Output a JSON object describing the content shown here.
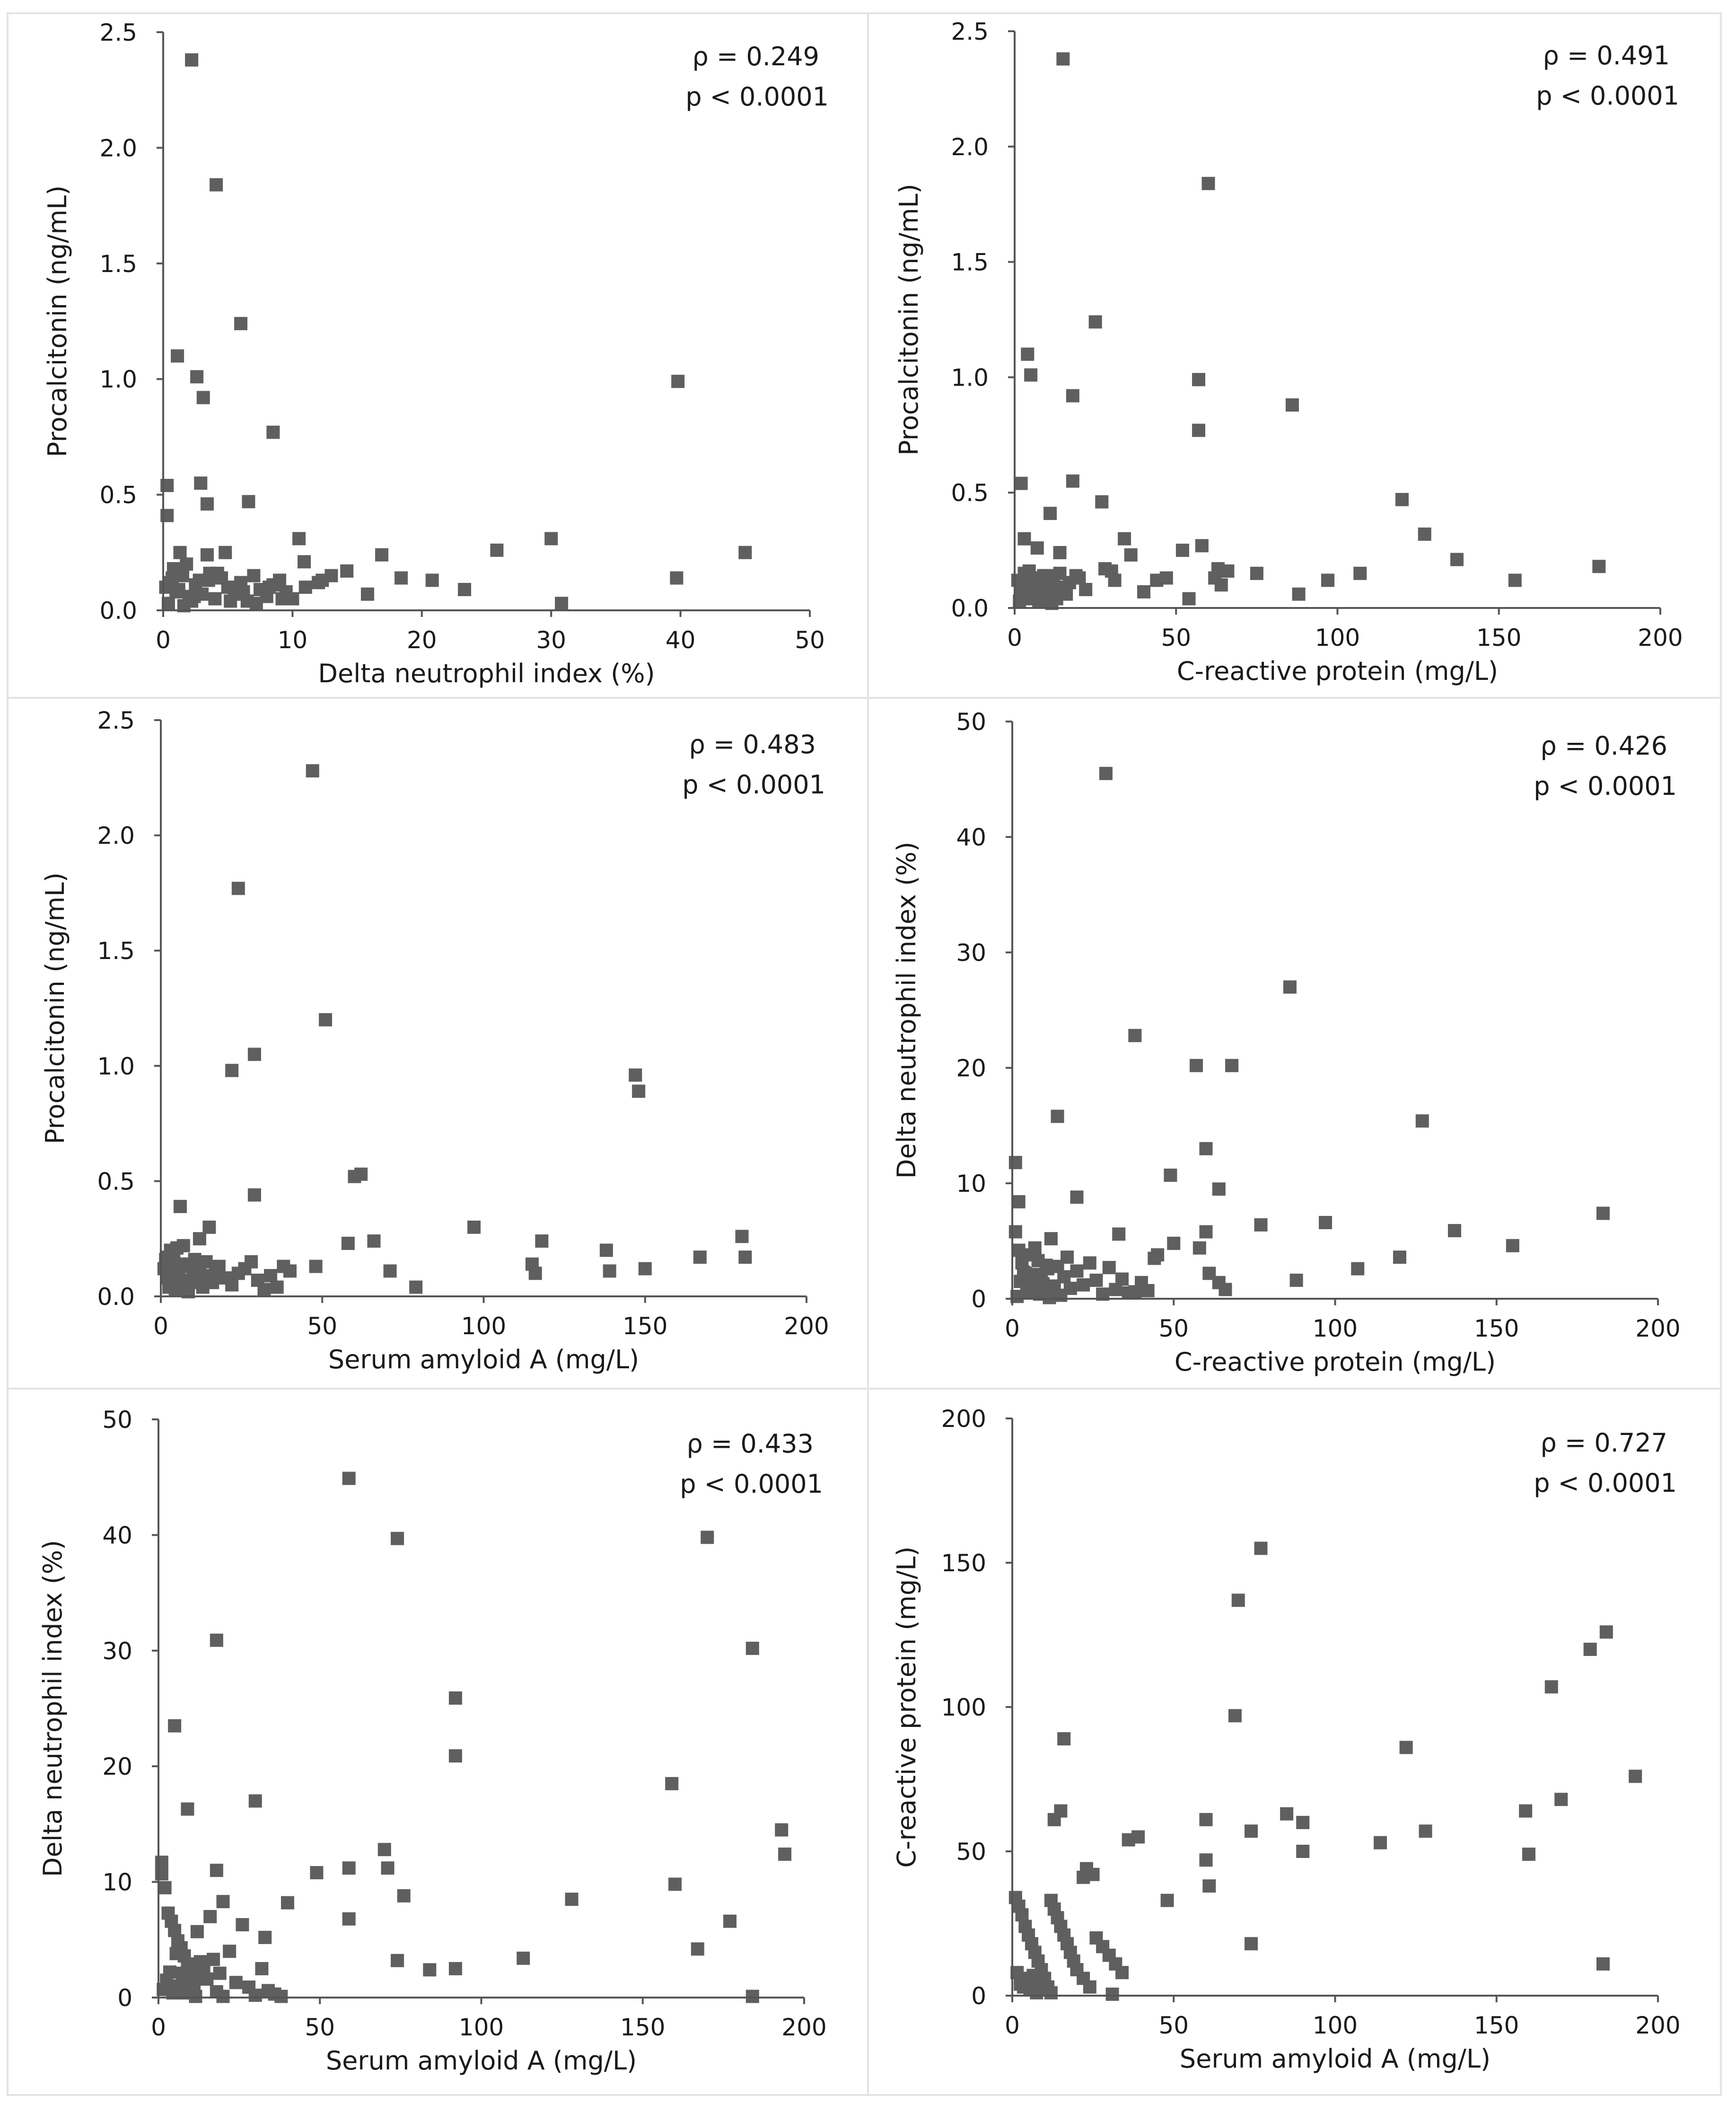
{
  "chart_data": [
    {
      "type": "scatter",
      "title": "",
      "xlabel": "Delta neutrophil index (%)",
      "ylabel": "Procalcitonin (ng/mL)",
      "xlim": [
        0,
        50
      ],
      "ylim": [
        0,
        2.5
      ],
      "xticks": [
        "0",
        "10",
        "20",
        "30",
        "40",
        "50"
      ],
      "yticks": [
        "0.0",
        "0.5",
        "1.0",
        "1.5",
        "2.0",
        "2.5"
      ],
      "stat_rho": "ρ = 0.249",
      "stat_p": "p < 0.0001",
      "x": [
        2.2,
        4.1,
        6,
        1.1,
        2.6,
        3.1,
        39.8,
        8.5,
        0.3,
        2.9,
        3.4,
        6.6,
        0.3,
        10.5,
        30,
        45,
        25.8,
        1.3,
        0.8,
        1.8,
        3.4,
        4.8,
        10.9,
        12.3,
        14.2,
        16.9,
        18.4,
        20.8,
        23.3,
        39.7,
        0.5,
        1,
        1.5,
        2,
        2.5,
        3,
        3.5,
        4,
        4.5,
        5,
        5.5,
        6,
        6.5,
        7,
        7.5,
        8,
        8.5,
        9,
        9.5,
        10,
        11,
        12,
        13,
        15.8,
        0.4,
        1.2,
        2.2,
        2.8,
        4.2,
        5.2,
        6.2,
        7.2,
        8.2,
        9.2,
        0.7,
        1.6,
        2.4,
        3.6,
        30.8,
        0.2
      ],
      "y": [
        2.38,
        1.84,
        1.24,
        1.1,
        1.01,
        0.92,
        0.99,
        0.77,
        0.54,
        0.55,
        0.46,
        0.47,
        0.41,
        0.31,
        0.31,
        0.25,
        0.26,
        0.25,
        0.18,
        0.2,
        0.24,
        0.25,
        0.21,
        0.13,
        0.17,
        0.24,
        0.14,
        0.13,
        0.09,
        0.14,
        0.12,
        0.08,
        0.15,
        0.06,
        0.11,
        0.07,
        0.13,
        0.05,
        0.14,
        0.1,
        0.07,
        0.12,
        0.04,
        0.15,
        0.09,
        0.06,
        0.11,
        0.13,
        0.08,
        0.05,
        0.1,
        0.12,
        0.15,
        0.07,
        0.03,
        0.09,
        0.04,
        0.13,
        0.16,
        0.04,
        0.08,
        0.03,
        0.1,
        0.05,
        0.14,
        0.02,
        0.06,
        0.16,
        0.03,
        0.1
      ]
    },
    {
      "type": "scatter",
      "title": "",
      "xlabel": "C-reactive protein (mg/L)",
      "ylabel": "Procalcitonin (ng/mL)",
      "xlim": [
        0,
        200
      ],
      "ylim": [
        0,
        2.5
      ],
      "xticks": [
        "0",
        "50",
        "100",
        "150",
        "200"
      ],
      "yticks": [
        "0.0",
        "0.5",
        "1.0",
        "1.5",
        "2.0",
        "2.5"
      ],
      "stat_rho": "ρ = 0.491",
      "stat_p": "p < 0.0001",
      "x": [
        15,
        60,
        25,
        4,
        5,
        57,
        18,
        57,
        86,
        2,
        18,
        27,
        11,
        120,
        127,
        137,
        155,
        181,
        3,
        7,
        14,
        19,
        30,
        34,
        52,
        54,
        58,
        63,
        66,
        75,
        88,
        97,
        107,
        47,
        1,
        2,
        3,
        4,
        5,
        6,
        7,
        8,
        9,
        10,
        11,
        12,
        13,
        14,
        15,
        16,
        17,
        20,
        22,
        28,
        31,
        36,
        40,
        44,
        62,
        64,
        1.5,
        2.5,
        3.5,
        4.5,
        5.5,
        6.5,
        7.5,
        8.5,
        9.5,
        10.5,
        11.5,
        12.5
      ],
      "y": [
        2.38,
        1.84,
        1.24,
        1.1,
        1.01,
        0.99,
        0.92,
        0.77,
        0.88,
        0.54,
        0.55,
        0.46,
        0.41,
        0.47,
        0.32,
        0.21,
        0.12,
        0.18,
        0.3,
        0.26,
        0.24,
        0.14,
        0.16,
        0.3,
        0.25,
        0.04,
        0.27,
        0.17,
        0.16,
        0.15,
        0.06,
        0.12,
        0.15,
        0.13,
        0.12,
        0.08,
        0.15,
        0.06,
        0.11,
        0.07,
        0.13,
        0.05,
        0.14,
        0.1,
        0.07,
        0.12,
        0.04,
        0.15,
        0.09,
        0.06,
        0.11,
        0.13,
        0.08,
        0.17,
        0.12,
        0.23,
        0.07,
        0.12,
        0.13,
        0.1,
        0.03,
        0.09,
        0.04,
        0.16,
        0.04,
        0.08,
        0.03,
        0.1,
        0.05,
        0.14,
        0.02,
        0.06
      ]
    },
    {
      "type": "scatter",
      "title": "",
      "xlabel": "Serum amyloid A (mg/L)",
      "ylabel": "Procalcitonin (ng/mL)",
      "xlim": [
        0,
        200
      ],
      "ylim": [
        0,
        2.5
      ],
      "xticks": [
        "0",
        "50",
        "100",
        "150",
        "200"
      ],
      "yticks": [
        "0.0",
        "0.5",
        "1.0",
        "1.5",
        "2.0",
        "2.5"
      ],
      "stat_rho": "ρ = 0.483",
      "stat_p": "p < 0.0001",
      "x": [
        47,
        24,
        51,
        29,
        22,
        147,
        148,
        60,
        62,
        29,
        6,
        15,
        97,
        12,
        118,
        138,
        58,
        180,
        181,
        40,
        48,
        66,
        71,
        115,
        116,
        167,
        79,
        150,
        139,
        1,
        2,
        3,
        4,
        5,
        6,
        7,
        8,
        9,
        10,
        11,
        12,
        13,
        14,
        15,
        16,
        17,
        18,
        20,
        22,
        24,
        26,
        28,
        30,
        32,
        34,
        36,
        38,
        1.5,
        2.5,
        3.5,
        4.5,
        5.5,
        6.5,
        7.5,
        8.5,
        9.5,
        10.5,
        2,
        4,
        3,
        5,
        7
      ],
      "y": [
        2.28,
        1.77,
        1.2,
        1.05,
        0.98,
        0.96,
        0.89,
        0.52,
        0.53,
        0.44,
        0.39,
        0.3,
        0.3,
        0.25,
        0.24,
        0.2,
        0.23,
        0.26,
        0.17,
        0.11,
        0.13,
        0.24,
        0.11,
        0.14,
        0.1,
        0.17,
        0.04,
        0.12,
        0.11,
        0.12,
        0.08,
        0.15,
        0.06,
        0.11,
        0.07,
        0.13,
        0.05,
        0.14,
        0.1,
        0.07,
        0.12,
        0.04,
        0.15,
        0.09,
        0.06,
        0.11,
        0.13,
        0.08,
        0.05,
        0.1,
        0.12,
        0.15,
        0.07,
        0.03,
        0.09,
        0.04,
        0.13,
        0.16,
        0.04,
        0.08,
        0.03,
        0.1,
        0.05,
        0.14,
        0.02,
        0.06,
        0.16,
        0.17,
        0.18,
        0.2,
        0.21,
        0.22
      ]
    },
    {
      "type": "scatter",
      "title": "",
      "xlabel": "C-reactive protein (mg/L)",
      "ylabel": "Delta neutrophil index (%)",
      "xlim": [
        0,
        200
      ],
      "ylim": [
        0,
        50
      ],
      "xticks": [
        "0",
        "50",
        "100",
        "150",
        "200"
      ],
      "yticks": [
        "0",
        "10",
        "20",
        "30",
        "40",
        "50"
      ],
      "stat_rho": "ρ = 0.426",
      "stat_p": "p < 0.0001",
      "x": [
        29,
        86,
        38,
        57,
        68,
        14,
        127,
        60,
        1,
        49,
        64,
        2,
        20,
        183,
        77,
        97,
        137,
        33,
        45,
        50,
        58,
        60,
        155,
        120,
        107,
        61,
        88,
        64,
        66,
        1,
        2,
        3,
        4,
        5,
        6,
        7,
        8,
        9,
        10,
        11,
        12,
        13,
        14,
        15,
        16,
        17,
        18,
        20,
        22,
        24,
        26,
        28,
        30,
        32,
        34,
        36,
        38,
        40,
        42,
        44,
        1.5,
        2.5,
        3.5,
        4.5,
        5.5,
        6.5,
        7.5,
        8.5,
        9.5,
        10.5,
        11.5
      ],
      "y": [
        45.5,
        27,
        22.8,
        20.2,
        20.2,
        15.8,
        15.4,
        13,
        11.8,
        10.7,
        9.5,
        8.4,
        8.8,
        7.4,
        6.4,
        6.6,
        5.9,
        5.6,
        3.8,
        4.8,
        4.4,
        5.8,
        4.6,
        3.6,
        2.6,
        2.2,
        1.6,
        1.4,
        0.8,
        5.8,
        4.2,
        3.1,
        2.2,
        1.3,
        0.8,
        4.4,
        3.3,
        1.8,
        0.5,
        2.6,
        5.2,
        1.1,
        2.8,
        0.3,
        1.9,
        3.6,
        0.9,
        2.4,
        1.2,
        3.1,
        1.6,
        0.4,
        2.7,
        0.8,
        1.7,
        0.5,
        0.6,
        1.4,
        0.7,
        3.5,
        0.2,
        1.5,
        2.3,
        0.6,
        3.8,
        1,
        2.1,
        0.4,
        1.3,
        2.9,
        0.1
      ]
    },
    {
      "type": "scatter",
      "title": "",
      "xlabel": "Serum amyloid A (mg/L)",
      "ylabel": "Delta neutrophil index (%)",
      "xlim": [
        0,
        200
      ],
      "ylim": [
        0,
        50
      ],
      "xticks": [
        "0",
        "50",
        "100",
        "150",
        "200"
      ],
      "yticks": [
        "0",
        "10",
        "20",
        "30",
        "40",
        "50"
      ],
      "stat_rho": "ρ = 0.433",
      "stat_p": "p < 0.0001",
      "x": [
        59,
        170,
        74,
        18,
        184,
        92,
        92,
        5,
        159,
        30,
        9,
        193,
        70,
        194,
        1,
        71,
        18,
        49,
        59,
        160,
        76,
        128,
        40,
        59,
        177,
        167,
        33,
        113,
        74,
        92,
        84,
        1,
        2,
        3,
        4,
        5,
        6,
        7,
        8,
        9,
        10,
        11,
        12,
        13,
        14,
        15,
        16,
        17,
        18,
        19,
        20,
        22,
        24,
        26,
        28,
        30,
        32,
        34,
        36,
        38,
        1.5,
        2.5,
        3.5,
        4.5,
        5.5,
        6.5,
        7.5,
        8.5,
        9.5,
        10.5,
        11.5,
        12.5,
        184,
        20
      ],
      "y": [
        44.9,
        39.8,
        39.7,
        30.9,
        30.2,
        25.9,
        20.9,
        23.5,
        18.5,
        17,
        16.3,
        14.5,
        12.8,
        12.4,
        11.7,
        11.2,
        11,
        10.8,
        11.2,
        9.8,
        8.8,
        8.5,
        8.2,
        6.8,
        6.6,
        4.2,
        5.2,
        3.4,
        3.2,
        2.5,
        2.4,
        10.7,
        9.5,
        7.3,
        6.6,
        5.8,
        4.9,
        4.3,
        3.6,
        2.7,
        1.8,
        0.9,
        5.7,
        3.1,
        2.4,
        1.6,
        7,
        3.3,
        0.5,
        2.1,
        8.3,
        4,
        1.3,
        6.3,
        0.9,
        0.2,
        2.5,
        0.6,
        0.3,
        0.1,
        0.7,
        1.5,
        2.2,
        0.4,
        3.8,
        1,
        2.1,
        0.4,
        1.3,
        2.9,
        0.1,
        1.9,
        0.1,
        0.1
      ]
    },
    {
      "type": "scatter",
      "title": "",
      "xlabel": "Serum amyloid A (mg/L)",
      "ylabel": "C-reactive protein (mg/L)",
      "xlim": [
        0,
        200
      ],
      "ylim": [
        0,
        200
      ],
      "xticks": [
        "0",
        "50",
        "100",
        "150",
        "200"
      ],
      "yticks": [
        "0",
        "50",
        "100",
        "150",
        "200"
      ],
      "stat_rho": "ρ = 0.727",
      "stat_p": "p < 0.0001",
      "x": [
        77,
        70,
        184,
        179,
        167,
        69,
        16,
        122,
        193,
        170,
        15,
        13,
        159,
        60,
        85,
        90,
        74,
        128,
        114,
        39,
        60,
        23,
        25,
        90,
        160,
        22,
        36,
        61,
        48,
        74,
        183,
        1,
        2,
        3,
        4,
        5,
        6,
        7,
        8,
        9,
        10,
        11,
        12,
        13,
        14,
        15,
        16,
        17,
        18,
        19,
        20,
        22,
        24,
        26,
        28,
        30,
        32,
        34,
        3,
        7,
        12,
        1.5,
        2.5,
        3.5,
        4.5,
        5.5,
        6.5,
        7.5,
        8.5,
        9.5,
        10.5,
        31
      ],
      "y": [
        155,
        137,
        126,
        120,
        107,
        97,
        89,
        86,
        76,
        68,
        64,
        61,
        64,
        61,
        63,
        60,
        57,
        57,
        53,
        55,
        47,
        44,
        42,
        50,
        49,
        41,
        54,
        38,
        33,
        18,
        11,
        34,
        31,
        28,
        24,
        21,
        18,
        15,
        12,
        9,
        6,
        3,
        33,
        30,
        27,
        24,
        21,
        18,
        15,
        12,
        9,
        6,
        3,
        20,
        17,
        14,
        11,
        8,
        5,
        2,
        1,
        8,
        4,
        3,
        6,
        2,
        7,
        1,
        5,
        3,
        2,
        0.5
      ]
    }
  ]
}
